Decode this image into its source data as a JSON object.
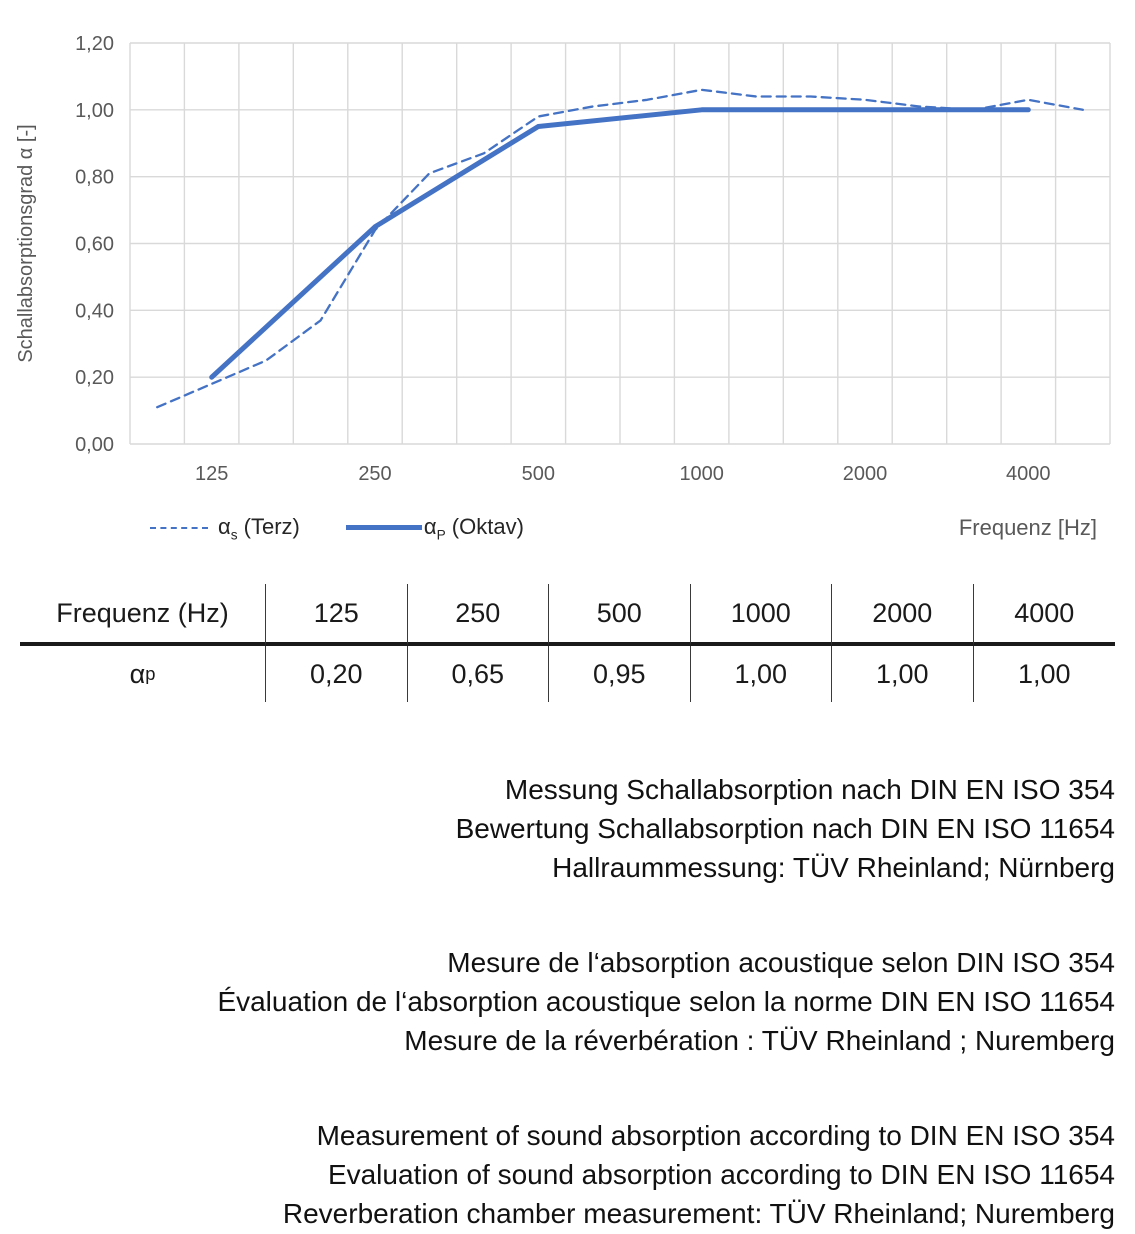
{
  "colors": {
    "accent_blue": "#4472C4",
    "gridline": "#D9D9D9",
    "axis_text": "#595959",
    "text": "#111111"
  },
  "chart": {
    "ylabel": "Schallabsorptionsgrad α [-]",
    "xlabel": "Frequenz [Hz]",
    "legend": [
      {
        "sym": "α",
        "sub": "s",
        "rest": " (Terz)"
      },
      {
        "sym": "α",
        "sub": "P",
        "rest": " (Oktav)"
      }
    ]
  },
  "chart_data": {
    "type": "line",
    "title": "",
    "xlabel": "Frequenz [Hz]",
    "ylabel": "Schallabsorptionsgrad α [-]",
    "x_scale": "logarithmic third-octave category axis",
    "categories": [
      100,
      125,
      160,
      200,
      250,
      315,
      400,
      500,
      630,
      800,
      1000,
      1250,
      1600,
      2000,
      2500,
      3150,
      4000,
      5000
    ],
    "x_tick_labels": [
      125,
      250,
      500,
      1000,
      2000,
      4000
    ],
    "y_ticks": [
      {
        "label": "0,00",
        "value": 0.0
      },
      {
        "label": "0,20",
        "value": 0.2
      },
      {
        "label": "0,40",
        "value": 0.4
      },
      {
        "label": "0,60",
        "value": 0.6
      },
      {
        "label": "0,80",
        "value": 0.8
      },
      {
        "label": "1,00",
        "value": 1.0
      },
      {
        "label": "1,20",
        "value": 1.2
      }
    ],
    "ylim": [
      0,
      1.2
    ],
    "grid": true,
    "legend_position": "bottom-left",
    "series": [
      {
        "name": "αs (Terz)",
        "style": "dashed",
        "color": "#4472C4",
        "stroke_width": 2.3,
        "x": [
          100,
          125,
          160,
          200,
          250,
          315,
          400,
          500,
          630,
          800,
          1000,
          1250,
          1600,
          2000,
          2500,
          3150,
          4000,
          5000
        ],
        "values": [
          0.11,
          0.18,
          0.25,
          0.37,
          0.64,
          0.81,
          0.87,
          0.98,
          1.01,
          1.03,
          1.06,
          1.04,
          1.04,
          1.03,
          1.01,
          1.0,
          1.03,
          1.0
        ]
      },
      {
        "name": "αP (Oktav)",
        "style": "solid",
        "color": "#4472C4",
        "stroke_width": 5,
        "x": [
          125,
          250,
          500,
          1000,
          2000,
          4000
        ],
        "values": [
          0.2,
          0.65,
          0.95,
          1.0,
          1.0,
          1.0
        ]
      }
    ]
  },
  "table": {
    "header": [
      "Frequenz (Hz)",
      "125",
      "250",
      "500",
      "1000",
      "2000",
      "4000"
    ],
    "row_label_sym": "α",
    "row_label_sub": "p",
    "values": [
      "0,20",
      "0,65",
      "0,95",
      "1,00",
      "1,00",
      "1,00"
    ]
  },
  "notes": {
    "german": [
      "Messung Schallabsorption nach DIN EN ISO 354",
      "Bewertung Schallabsorption nach DIN EN ISO 11654",
      "Hallraummessung: TÜV Rheinland; Nürnberg"
    ],
    "french": [
      "Mesure de l‘absorption acoustique selon DIN ISO 354",
      "Évaluation de l‘absorption acoustique selon la norme DIN EN ISO 11654",
      "Mesure de la réverbération : TÜV Rheinland ; Nuremberg"
    ],
    "english": [
      "Measurement of sound absorption according to DIN EN ISO 354",
      "Evaluation of sound absorption according to DIN EN ISO 11654",
      "Reverberation chamber measurement: TÜV Rheinland; Nuremberg"
    ]
  }
}
